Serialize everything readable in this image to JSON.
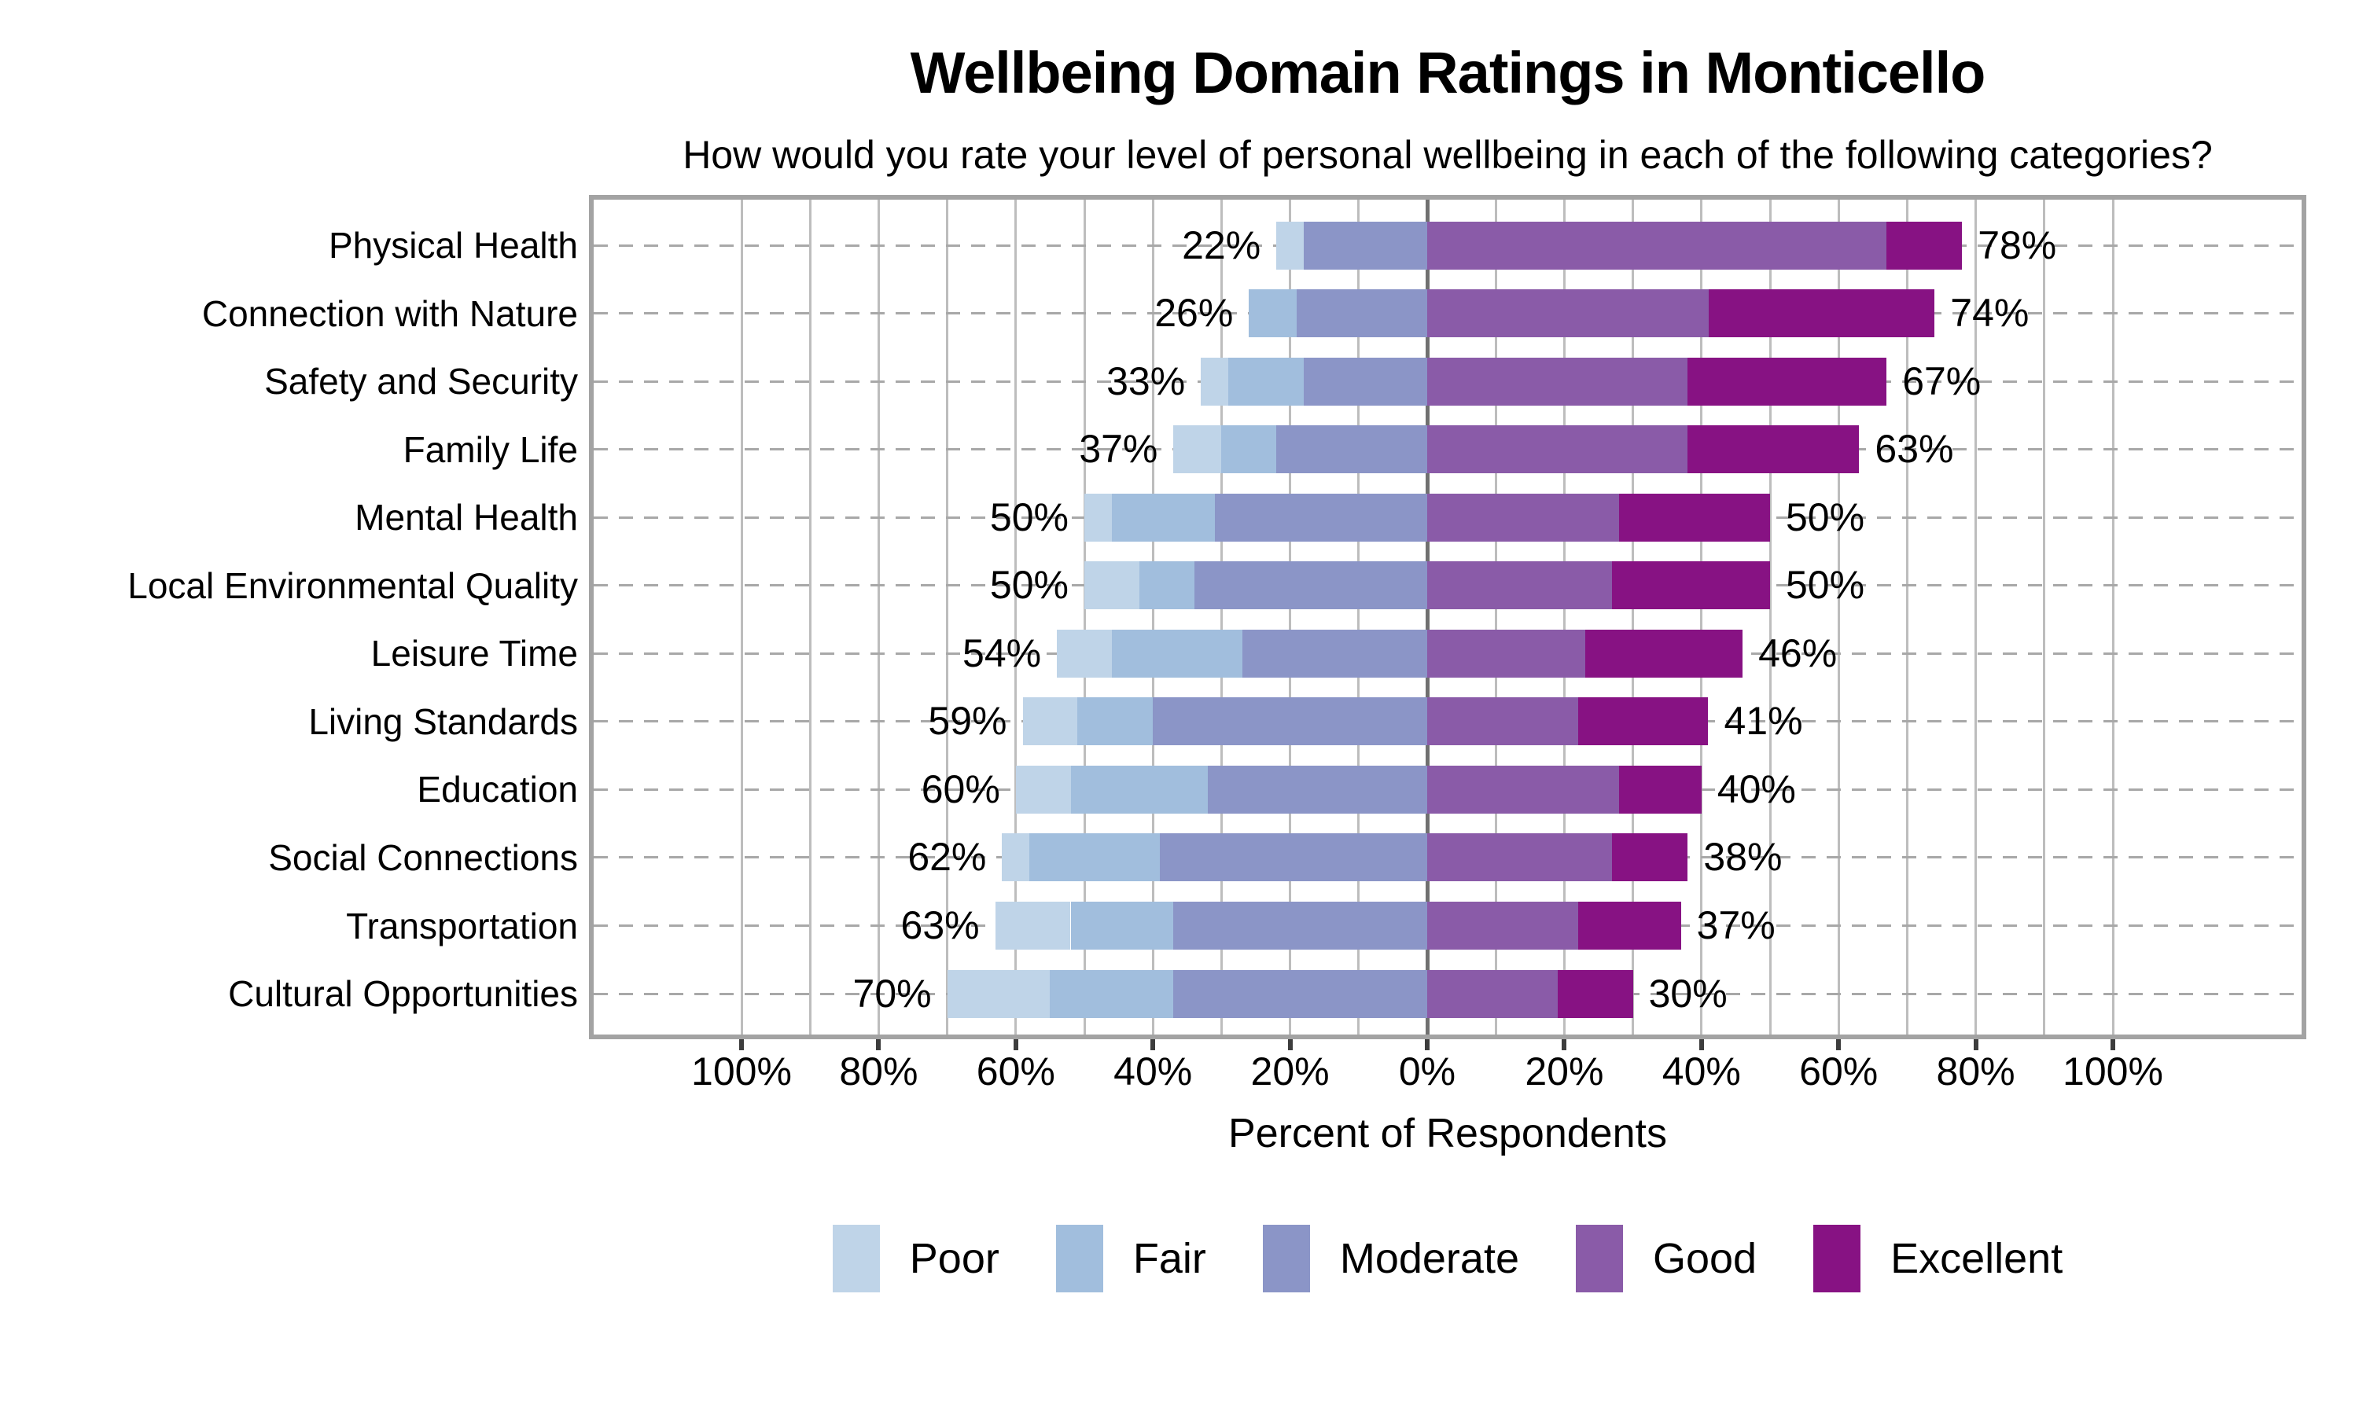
{
  "chart_data": {
    "type": "bar",
    "variant": "diverging-stacked-horizontal",
    "title": "Wellbeing Domain Ratings in Monticello",
    "subtitle": "How would you rate your level of personal wellbeing in each of the following categories?",
    "xlabel": "Percent of Respondents",
    "x_tick_values": [
      -100,
      -80,
      -60,
      -40,
      -20,
      0,
      20,
      40,
      60,
      80,
      100
    ],
    "x_tick_labels": [
      "100%",
      "80%",
      "60%",
      "40%",
      "20%",
      "0%",
      "20%",
      "40%",
      "60%",
      "80%",
      "100%"
    ],
    "xlim": [
      -121.6,
      127.5
    ],
    "gridlines": {
      "vertical_every_pct": 10,
      "horizontal_dashed_per_row": true
    },
    "legend_position": "bottom",
    "legend": [
      {
        "label": "Poor",
        "color": "#bfd4e8"
      },
      {
        "label": "Fair",
        "color": "#a1bedd"
      },
      {
        "label": "Moderate",
        "color": "#8b95c7"
      },
      {
        "label": "Good",
        "color": "#8a5ba8"
      },
      {
        "label": "Excellent",
        "color": "#871283"
      }
    ],
    "left_side_levels": [
      "Poor",
      "Fair",
      "Moderate"
    ],
    "right_side_levels": [
      "Good",
      "Excellent"
    ],
    "categories": [
      "Physical Health",
      "Connection with Nature",
      "Safety and Security",
      "Family Life",
      "Mental Health",
      "Local Environmental Quality",
      "Leisure Time",
      "Living Standards",
      "Education",
      "Social Connections",
      "Transportation",
      "Cultural Opportunities"
    ],
    "series": [
      {
        "name": "Poor",
        "values": [
          4,
          0,
          4,
          7,
          4,
          8,
          8,
          8,
          8,
          4,
          11,
          15
        ]
      },
      {
        "name": "Fair",
        "values": [
          0,
          7,
          11,
          8,
          15,
          8,
          19,
          11,
          20,
          19,
          15,
          18
        ]
      },
      {
        "name": "Moderate",
        "values": [
          18,
          19,
          18,
          22,
          31,
          34,
          27,
          40,
          32,
          39,
          37,
          37
        ]
      },
      {
        "name": "Good",
        "values": [
          67,
          41,
          38,
          38,
          28,
          27,
          23,
          22,
          28,
          27,
          22,
          19
        ]
      },
      {
        "name": "Excellent",
        "values": [
          11,
          33,
          29,
          25,
          22,
          23,
          23,
          19,
          12,
          11,
          15,
          11
        ]
      }
    ],
    "left_total_labels": [
      "22%",
      "26%",
      "33%",
      "37%",
      "50%",
      "50%",
      "54%",
      "59%",
      "60%",
      "62%",
      "63%",
      "70%"
    ],
    "right_total_labels": [
      "78%",
      "74%",
      "67%",
      "63%",
      "50%",
      "50%",
      "46%",
      "41%",
      "40%",
      "38%",
      "37%",
      "30%"
    ]
  }
}
